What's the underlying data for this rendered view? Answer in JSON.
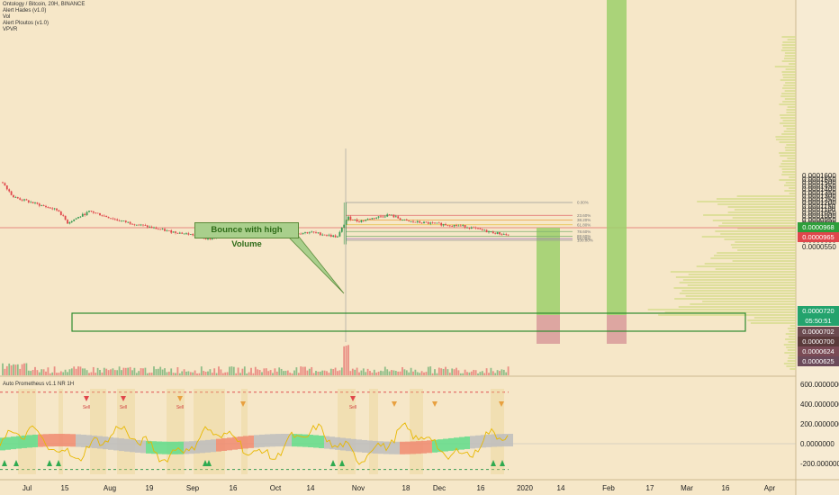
{
  "header": {
    "symbol": "Ontology / Bitcoin, 20H, BINANCE",
    "indicators": [
      "Alert Hades (v1.0)",
      "Vol",
      "Alert Ploutos (v1.0)",
      "VPVR"
    ],
    "sub_indicator": "Auto Prometheus v1.1 NR 1H"
  },
  "annotation": {
    "callout": "Bounce with high Volume"
  },
  "colors": {
    "background": "#f6e7c8",
    "bull": "#3a9a52",
    "bear": "#e0464b",
    "support_box": "#2e8b2e",
    "target_zone": "#9ccf6b",
    "stop_zone": "#d89a9a",
    "vpvr": "#d6dc8c"
  },
  "tags": [
    {
      "name": "tag-price-green",
      "text": "0.0000968",
      "color": "#2e9e3a"
    },
    {
      "name": "tag-price-red",
      "text": "0.0000965",
      "color": "#e0464b"
    },
    {
      "name": "tag-price-current",
      "text": "0.0000720",
      "color": "#23a36d"
    },
    {
      "name": "tag-countdown",
      "text": "05:50:51",
      "color": "#23a36d"
    },
    {
      "name": "tag-price-702",
      "text": "0.0000702",
      "color": "#6b4a4f"
    },
    {
      "name": "tag-price-700",
      "text": "0.0000700",
      "color": "#5a3a3a"
    },
    {
      "name": "tag-price-624",
      "text": "0.0000624",
      "color": "#7a4a55"
    },
    {
      "name": "tag-price-625",
      "text": "0.0000625",
      "color": "#6b4a5a"
    }
  ],
  "chart_data": [
    {
      "type": "candlestick",
      "title": "Ontology / Bitcoin, 20H, BINANCE",
      "y_axis": {
        "min": 5.5e-05,
        "max": 0.000163,
        "ticks": [
          "0.0001600",
          "0.0001550",
          "0.0001500",
          "0.0001450",
          "0.0001400",
          "0.0001350",
          "0.0001300",
          "0.0001250",
          "0.0001200",
          "0.0001150",
          "0.0001100",
          "0.0001050",
          "0.0001000",
          "0.0000950",
          "0.0000900",
          "0.0000850",
          "0.0000800",
          "0.0000750",
          "0.0000700",
          "0.0000650",
          "0.0000550"
        ]
      },
      "x_axis": {
        "ticks": [
          "Jul",
          "15",
          "Aug",
          "19",
          "Sep",
          "16",
          "Oct",
          "14",
          "Nov",
          "18",
          "Dec",
          "16",
          "2020",
          "14",
          "Feb",
          "17",
          "Mar",
          "16",
          "Apr"
        ]
      },
      "fib_levels": [
        {
          "label": "0.00%",
          "value": 0.00012
        },
        {
          "label": "23.60%",
          "value": 0.000101
        },
        {
          "label": "38.20%",
          "value": 9.4e-05
        },
        {
          "label": "61.80%",
          "value": 8.7e-05
        },
        {
          "label": "78.60%",
          "value": 7.7e-05
        },
        {
          "label": "88.60%",
          "value": 7e-05
        },
        {
          "label": "94.00%",
          "value": 6.65e-05
        },
        {
          "label": "100.00%",
          "value": 6.4e-05
        }
      ],
      "price_path_approx": [
        {
          "t": "Jul",
          "v": 0.00015
        },
        {
          "t": "Jul 8",
          "v": 0.000128
        },
        {
          "t": "15",
          "v": 0.000108
        },
        {
          "t": "Jul 25",
          "v": 9e-05
        },
        {
          "t": "Jul 31",
          "v": 0.000107
        },
        {
          "t": "Aug 10",
          "v": 9.4e-05
        },
        {
          "t": "Aug 19",
          "v": 7.8e-05
        },
        {
          "t": "Sep",
          "v": 7.2e-05
        },
        {
          "t": "Sep 8",
          "v": 6.6e-05
        },
        {
          "t": "16",
          "v": 7.5e-05
        },
        {
          "t": "Sep 25",
          "v": 7.8e-05
        },
        {
          "t": "Oct",
          "v": 7.2e-05
        },
        {
          "t": "Oct 14",
          "v": 7.6e-05
        },
        {
          "t": "Oct 24",
          "v": 6.9e-05
        },
        {
          "t": "Oct 27",
          "v": 9.8e-05
        },
        {
          "t": "Nov",
          "v": 9.2e-05
        },
        {
          "t": "Nov 10",
          "v": 0.000102
        },
        {
          "t": "18",
          "v": 9.2e-05
        },
        {
          "t": "Dec",
          "v": 8.8e-05
        },
        {
          "t": "Dec 10",
          "v": 8.5e-05
        },
        {
          "t": "16",
          "v": 7.6e-05
        },
        {
          "t": "Dec 22",
          "v": 7.2e-05
        }
      ]
    },
    {
      "type": "oscillator",
      "title": "Auto Prometheus v1.1 NR 1H",
      "y_axis": {
        "min": -300,
        "max": 650,
        "ticks": [
          "600.0000000",
          "400.0000000",
          "200.0000000",
          "0.0000000",
          "-200.0000000"
        ]
      },
      "signal_labels": [
        "Sell",
        "Sell",
        "Sell",
        "Sell"
      ]
    }
  ]
}
